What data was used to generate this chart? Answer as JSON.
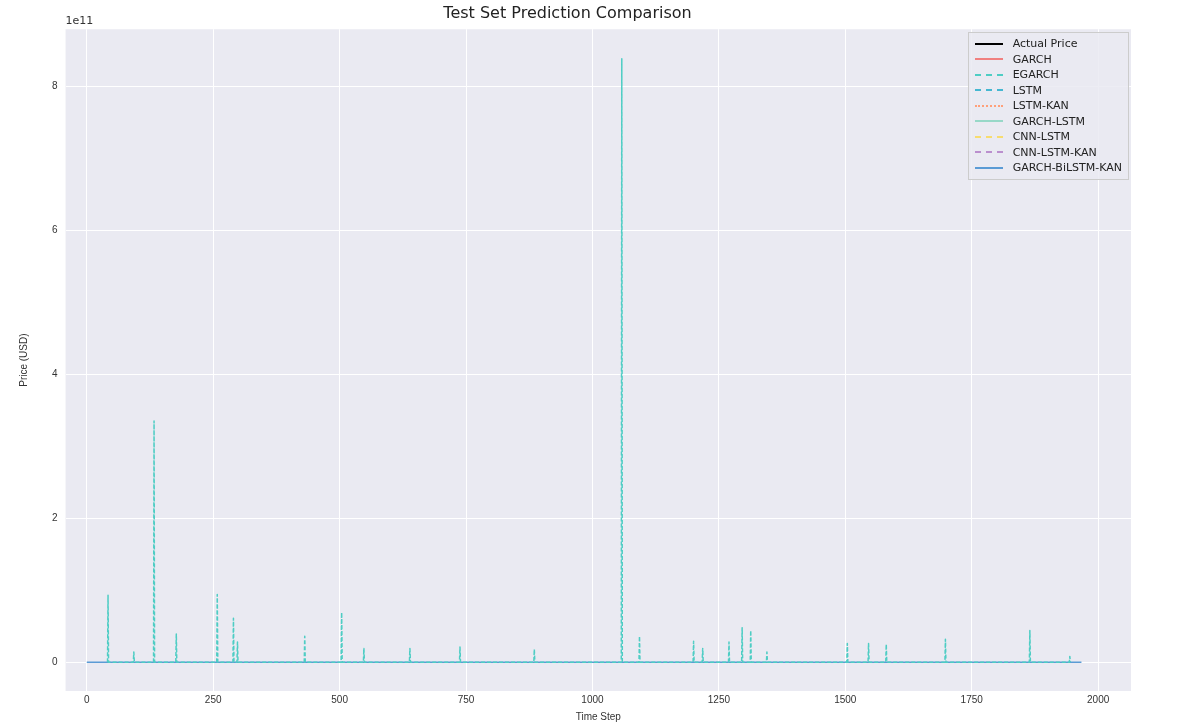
{
  "chart_data": {
    "type": "line",
    "title": "Test Set Prediction Comparison",
    "xlabel": "Time Step",
    "ylabel": "Price (USD)",
    "annotations": [
      "1e11"
    ],
    "x": [
      0,
      1967
    ],
    "xlim": [
      -42,
      2065
    ],
    "xticks": [
      0,
      250,
      500,
      750,
      1000,
      1250,
      1500,
      1750,
      2000
    ],
    "ylim": [
      -0.4,
      8.79
    ],
    "yticks": [
      0,
      2,
      4,
      6,
      8
    ],
    "grid": true,
    "legend": "top right",
    "marker": "none",
    "series": [
      {
        "name": "Actual Price",
        "color": "#000000",
        "line_style": "solid",
        "values": [
          null,
          null
        ]
      },
      {
        "name": "GARCH",
        "color": "#f08080",
        "line_style": "solid",
        "values": [
          null,
          null
        ]
      },
      {
        "name": "EGARCH",
        "color": "#4ecdc4",
        "line_style": "dashed",
        "x": [
          41,
          42,
          43,
          92,
          93,
          94,
          132,
          133,
          134,
          176,
          177,
          178,
          257,
          258,
          259,
          289,
          290,
          291,
          297,
          298,
          299,
          430,
          431,
          432,
          503,
          504,
          505,
          547,
          548,
          549,
          638,
          639,
          640,
          737,
          738,
          739,
          884,
          885,
          886,
          1057,
          1058,
          1059,
          1092,
          1093,
          1094,
          1199,
          1200,
          1201,
          1217,
          1218,
          1219,
          1269,
          1270,
          1271,
          1295,
          1296,
          1297,
          1312,
          1313,
          1314,
          1344,
          1345,
          1346,
          1503,
          1504,
          1505,
          1545,
          1546,
          1547,
          1580,
          1581,
          1582,
          1697,
          1698,
          1699,
          1864,
          1865,
          1866,
          1943,
          1944,
          1945
        ],
        "values": [
          0,
          0.93,
          0,
          0,
          0.14,
          0,
          0,
          3.35,
          0,
          0,
          0.39,
          0,
          0,
          0.94,
          0,
          0,
          0.61,
          0,
          0,
          0.28,
          0,
          0,
          0.36,
          0,
          0,
          0.69,
          0,
          0,
          0.19,
          0,
          0,
          0.19,
          0,
          0,
          0.21,
          0,
          0,
          0.18,
          0,
          0,
          8.38,
          0,
          0,
          0.36,
          0,
          0,
          0.29,
          0,
          0,
          0.19,
          0,
          0,
          0.28,
          0,
          0,
          0.48,
          0,
          0,
          0.44,
          0,
          0,
          0.14,
          0,
          0,
          0.26,
          0,
          0,
          0.26,
          0,
          0,
          0.25,
          0,
          0,
          0.32,
          0,
          0,
          0.44,
          0,
          0,
          0.08,
          0
        ]
      },
      {
        "name": "LSTM",
        "color": "#45b7d1",
        "line_style": "dashdot",
        "values": [
          null,
          null
        ]
      },
      {
        "name": "LSTM-KAN",
        "color": "#ffa07a",
        "line_style": "dotted",
        "values": [
          null,
          null
        ]
      },
      {
        "name": "GARCH-LSTM",
        "color": "#98d8c8",
        "line_style": "solid",
        "values": [
          null,
          null
        ]
      },
      {
        "name": "CNN-LSTM",
        "color": "#f7dc6f",
        "line_style": "dashed",
        "values": [
          null,
          null
        ]
      },
      {
        "name": "CNN-LSTM-KAN",
        "color": "#bb8fce",
        "line_style": "dashdot",
        "values": [
          null,
          null
        ]
      },
      {
        "name": "GARCH-BiLSTM-KAN",
        "color": "#5b9bd5",
        "line_style": "solid",
        "values": [
          0,
          0
        ]
      }
    ]
  }
}
